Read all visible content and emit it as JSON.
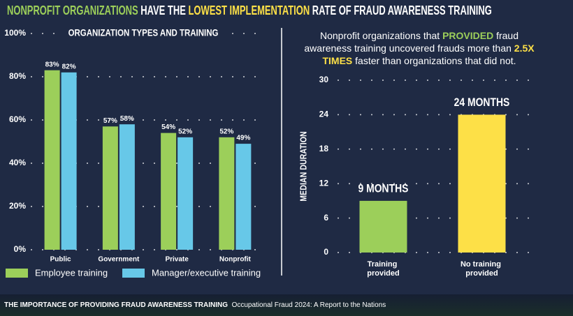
{
  "header": {
    "title_parts": [
      {
        "text": "NONPROFIT ORGANIZATIONS",
        "color": "#9ccf5a"
      },
      {
        "text": " HAVE THE ",
        "color": "#ffffff"
      },
      {
        "text": "LOWEST IMPLEMENTATION",
        "color": "#fde047"
      },
      {
        "text": " RATE OF FRAUD AWARENESS TRAINING",
        "color": "#ffffff"
      }
    ]
  },
  "chart_data": [
    {
      "type": "bar",
      "title": "ORGANIZATION TYPES AND TRAINING",
      "categories": [
        "Public",
        "Government",
        "Private",
        "Nonprofit"
      ],
      "series": [
        {
          "name": "Employee training",
          "color": "#9ccf5a",
          "values": [
            83,
            57,
            54,
            52
          ],
          "value_labels": [
            "83%",
            "57%",
            "54%",
            "52%"
          ]
        },
        {
          "name": "Manager/executive training",
          "color": "#67c8e8",
          "values": [
            82,
            58,
            52,
            49
          ],
          "value_labels": [
            "82%",
            "58%",
            "52%",
            "49%"
          ]
        }
      ],
      "ylim": [
        0,
        100
      ],
      "yticks": [
        {
          "value": 0,
          "label": "0%"
        },
        {
          "value": 20,
          "label": "20%"
        },
        {
          "value": 40,
          "label": "40%"
        },
        {
          "value": 60,
          "label": "60%"
        },
        {
          "value": 80,
          "label": "80%"
        },
        {
          "value": 100,
          "label": "100%"
        }
      ],
      "grid": true
    },
    {
      "type": "bar",
      "subtitle_parts": [
        {
          "text": "Nonprofit organizations that ",
          "color": "#ffffff"
        },
        {
          "text": "PROVIDED",
          "color": "#9ccf5a"
        },
        {
          "text": " fraud awareness training uncovered frauds more than ",
          "color": "#ffffff"
        },
        {
          "text": "2.5X TIMES",
          "color": "#fde047"
        },
        {
          "text": " faster than organizations that did not.",
          "color": "#ffffff"
        }
      ],
      "y_label": "MEDIAN DURATION",
      "categories": [
        "Training provided",
        "No training provided"
      ],
      "values": [
        9,
        24
      ],
      "value_labels": [
        "9 MONTHS",
        "24 MONTHS"
      ],
      "colors": [
        "#9ccf5a",
        "#fde047"
      ],
      "ylim": [
        0,
        30
      ],
      "yticks": [
        0,
        6,
        12,
        18,
        24,
        30
      ],
      "grid": true
    }
  ],
  "footer": {
    "title": "THE IMPORTANCE OF PROVIDING FRAUD AWARENESS TRAINING",
    "source": "Occupational Fraud 2024: A Report to the Nations"
  }
}
